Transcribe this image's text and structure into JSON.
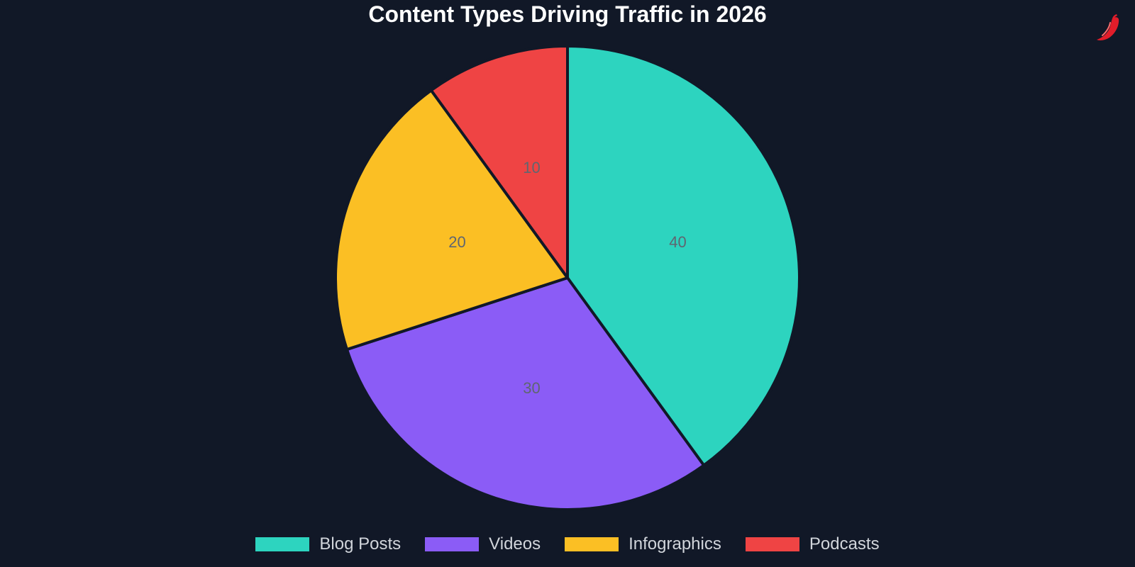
{
  "chart_data": {
    "type": "pie",
    "title": "Content Types Driving Traffic in 2026",
    "categories": [
      "Blog Posts",
      "Videos",
      "Infographics",
      "Podcasts"
    ],
    "values": [
      40,
      30,
      20,
      10
    ],
    "colors": [
      "#2dd4bf",
      "#8b5cf6",
      "#fbbf24",
      "#ef4444"
    ],
    "data_labels": [
      "40",
      "30",
      "20",
      "10"
    ],
    "legend_position": "bottom"
  },
  "logo": {
    "icon": "chili-pepper-icon",
    "color": "#e11d2a"
  }
}
